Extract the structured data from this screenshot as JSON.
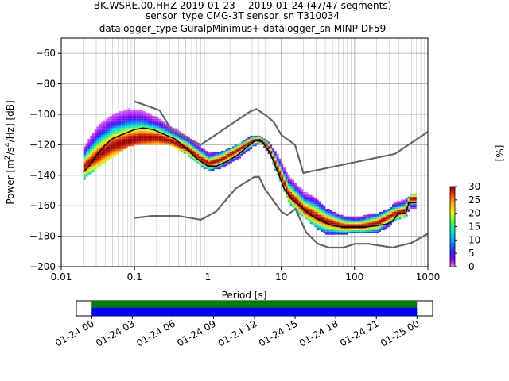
{
  "chart_data": {
    "type": "scatter",
    "title_lines": [
      "BK.WSRE.00.HHZ   2019-01-23 -- 2019-01-24  (47/47 segments)",
      "sensor_type CMG-3T sensor_sn T310034",
      "datalogger_type GuralpMinimus+ datalogger_sn MINP-DF59"
    ],
    "xlabel": "Period [s]",
    "ylabel_parts": [
      "Power [m",
      "2",
      "/s",
      "4",
      "/Hz] [dB]"
    ],
    "x_scale": "log",
    "xlim": [
      0.01,
      1000
    ],
    "ylim": [
      -200,
      -50
    ],
    "x_ticks": [
      {
        "value": 0.01,
        "label": "0.01"
      },
      {
        "value": 0.1,
        "label": "0.1"
      },
      {
        "value": 1,
        "label": "1"
      },
      {
        "value": 10,
        "label": "10"
      },
      {
        "value": 100,
        "label": "100"
      },
      {
        "value": 1000,
        "label": "1000"
      }
    ],
    "y_ticks": [
      {
        "value": -60,
        "label": "−60"
      },
      {
        "value": -80,
        "label": "−80"
      },
      {
        "value": -100,
        "label": "−100"
      },
      {
        "value": -120,
        "label": "−120"
      },
      {
        "value": -140,
        "label": "−140"
      },
      {
        "value": -160,
        "label": "−160"
      },
      {
        "value": -180,
        "label": "−180"
      },
      {
        "value": -200,
        "label": "−200"
      }
    ],
    "grid": true,
    "colorbar": {
      "label": "[%]",
      "range": [
        0,
        30
      ],
      "ticks": [
        {
          "value": 0,
          "label": "0"
        },
        {
          "value": 5,
          "label": "5"
        },
        {
          "value": 10,
          "label": "10"
        },
        {
          "value": 15,
          "label": "15"
        },
        {
          "value": 20,
          "label": "20"
        },
        {
          "value": 25,
          "label": "25"
        },
        {
          "value": 30,
          "label": "30"
        }
      ]
    },
    "noise_models": [
      {
        "x": [
          0.1,
          0.17,
          0.4,
          0.8,
          1.3,
          2.4,
          4.3,
          5.0,
          6.0,
          10.0,
          12.0,
          15.6,
          21.9,
          31.6,
          45.0,
          70.0,
          101.0,
          154.0,
          328.0,
          600.0,
          1000.0
        ],
        "y": [
          -168,
          -166.7,
          -166.7,
          -169.2,
          -163.7,
          -148.6,
          -141.1,
          -141.1,
          -149.0,
          -163.8,
          -166.2,
          -162.1,
          -177.5,
          -185.0,
          -187.5,
          -187.5,
          -185.0,
          -185.0,
          -187.5,
          -184.4,
          -178.3
        ]
      },
      {
        "x": [
          0.1,
          0.22,
          0.32,
          0.8,
          3.8,
          4.6,
          6.3,
          7.9,
          10.0,
          15.4,
          20.0,
          354.8,
          1000.0
        ],
        "y": [
          -91.5,
          -97.4,
          -110.5,
          -120.0,
          -98.0,
          -96.5,
          -101.0,
          -105.0,
          -113.5,
          -120.0,
          -138.5,
          -126.0,
          -111.5
        ]
      }
    ],
    "mean_curve": {
      "x": [
        0.02,
        0.025,
        0.03,
        0.04,
        0.05,
        0.07,
        0.1,
        0.13,
        0.18,
        0.25,
        0.35,
        0.5,
        0.7,
        1.0,
        1.3,
        1.8,
        2.5,
        3.5,
        4.5,
        5.5,
        7.0,
        9.0,
        11.0,
        14.0,
        18.0,
        25.0,
        35.0,
        50.0,
        70.0,
        100.0,
        140.0,
        200.0,
        280.0,
        330.0,
        400.0,
        500.0,
        550.0,
        700.0
      ],
      "y": [
        -138,
        -133,
        -127,
        -120,
        -116,
        -113,
        -110,
        -109,
        -110,
        -113,
        -116,
        -122,
        -129,
        -134,
        -134,
        -131,
        -127,
        -121,
        -117,
        -118,
        -125,
        -138,
        -149,
        -156,
        -160,
        -166,
        -170,
        -173,
        -174,
        -174,
        -174,
        -173,
        -172,
        -170,
        -165,
        -165,
        -158,
        -158
      ]
    },
    "pdf_mode_curve": {
      "x": [
        0.02,
        0.03,
        0.05,
        0.08,
        0.12,
        0.2,
        0.3,
        0.5,
        0.8,
        1.0,
        1.5,
        2.5,
        4.0,
        5.0,
        6.5,
        9.0,
        12.0,
        20.0,
        40.0,
        70.0,
        120.0,
        200.0,
        330.0,
        480.0,
        560.0,
        700.0
      ],
      "y": [
        -135,
        -128,
        -121,
        -118,
        -116,
        -116,
        -118,
        -123,
        -130,
        -133,
        -130,
        -124,
        -118,
        -117,
        -122,
        -138,
        -152,
        -163,
        -171,
        -174,
        -174,
        -172,
        -166,
        -164,
        -156,
        -156
      ]
    },
    "pdf_bands": [
      {
        "x": [
          0.02,
          0.03,
          0.05,
          0.08,
          0.12,
          0.18,
          0.3,
          0.5,
          0.8,
          1.0,
          1.5,
          2.5,
          4.0,
          5.0,
          6.5,
          9.0,
          12.0,
          16.0,
          20.0,
          30.0,
          40.0,
          60.0,
          80.0,
          100.0,
          150.0,
          200.0,
          280.0,
          350.0,
          480.0,
          560.0,
          700.0
        ],
        "low": [
          -143,
          -136,
          -128,
          -122,
          -120,
          -120,
          -121,
          -127,
          -135,
          -138,
          -136,
          -130,
          -122,
          -119,
          -126,
          -143,
          -158,
          -165,
          -168,
          -176,
          -179,
          -179,
          -179,
          -178,
          -178,
          -178,
          -175,
          -170,
          -168,
          -163,
          -162
        ],
        "high": [
          -122,
          -106,
          -96,
          -90,
          -92,
          -98,
          -106,
          -114,
          -122,
          -126,
          -125,
          -120,
          -114,
          -115,
          -118,
          -128,
          -140,
          -147,
          -150,
          -156,
          -162,
          -166,
          -168,
          -168,
          -166,
          -165,
          -163,
          -158,
          -156,
          -153,
          -152
        ]
      }
    ]
  },
  "timeline": {
    "start_frac": 0.043,
    "end_frac": 0.956,
    "ticks": [
      {
        "frac": 0.043,
        "label": "01-24 00"
      },
      {
        "frac": 0.157,
        "label": "01-24 03"
      },
      {
        "frac": 0.271,
        "label": "01-24 06"
      },
      {
        "frac": 0.385,
        "label": "01-24 09"
      },
      {
        "frac": 0.5,
        "label": "01-24 12"
      },
      {
        "frac": 0.614,
        "label": "01-24 15"
      },
      {
        "frac": 0.728,
        "label": "01-24 18"
      },
      {
        "frac": 0.842,
        "label": "01-24 21"
      },
      {
        "frac": 0.956,
        "label": "01-25 00"
      }
    ]
  }
}
